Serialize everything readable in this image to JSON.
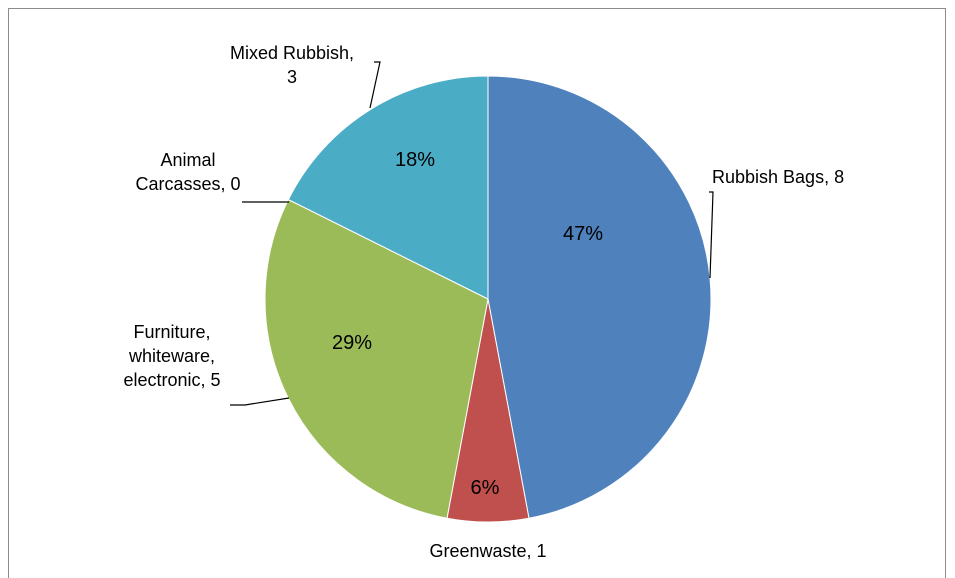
{
  "chart_data": {
    "type": "pie",
    "categories": [
      "Rubbish Bags",
      "Greenwaste",
      "Furniture, whiteware, electronic",
      "Animal Carcasses",
      "Mixed Rubbish"
    ],
    "values": [
      8,
      1,
      5,
      0,
      3
    ],
    "percent_labels": [
      "47%",
      "6%",
      "29%",
      "",
      "18%"
    ],
    "colors": [
      "#4f81bd",
      "#c0504d",
      "#9bbb59",
      "#8064a2",
      "#4bacc6"
    ],
    "slice_stroke": "#ffffff",
    "leader_color": "#000000",
    "category_labels": [
      [
        "Rubbish Bags, 8"
      ],
      [
        "Greenwaste, 1"
      ],
      [
        "Furniture,",
        "whiteware,",
        "electronic, 5"
      ],
      [
        "Animal",
        "Carcasses, 0"
      ],
      [
        "Mixed Rubbish,",
        "3"
      ]
    ],
    "start_angle_deg": 0,
    "direction": "clockwise",
    "legend": "none"
  }
}
